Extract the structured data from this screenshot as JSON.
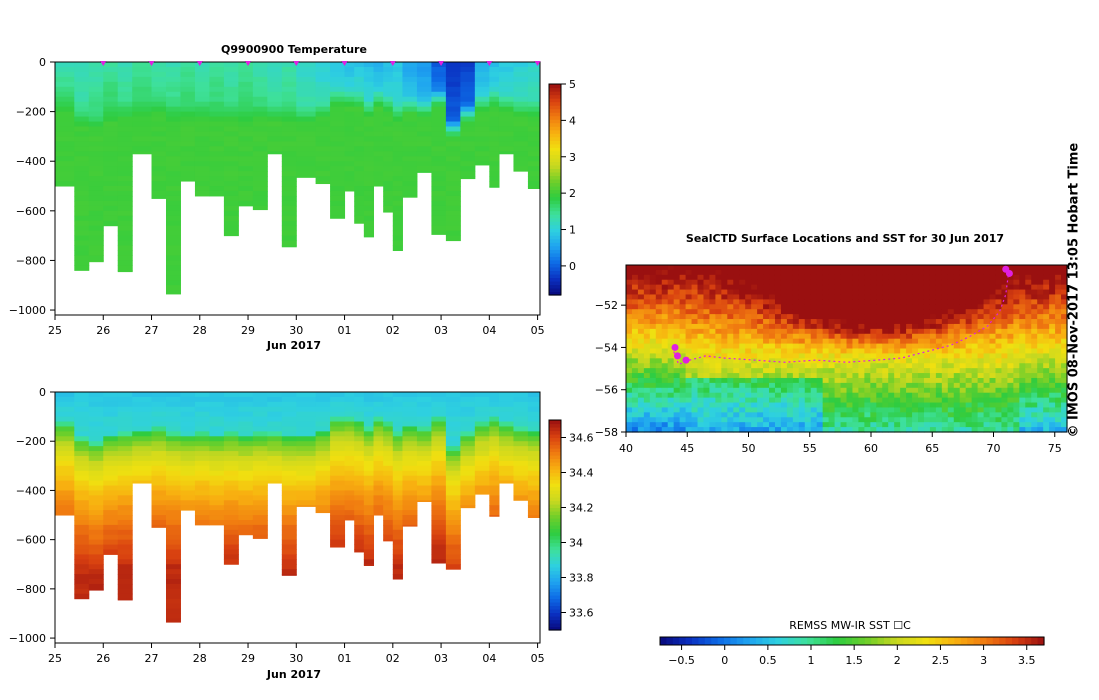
{
  "colors": {
    "palette": [
      "#08087a",
      "#0a2fc0",
      "#0d6be6",
      "#1fa3f0",
      "#2ed0e0",
      "#3ee09a",
      "#2ecc40",
      "#6ecf2a",
      "#c8d820",
      "#f0e010",
      "#f8b010",
      "#f07a10",
      "#d84010",
      "#9a1010"
    ],
    "magenta": "#e020e0",
    "frame": "#000000"
  },
  "chart_data": [
    {
      "type": "heatmap",
      "name": "temperature-section",
      "title": "Q9900900  Temperature",
      "xlabel": "Jun 2017",
      "x_tick_labels": [
        "25",
        "26",
        "27",
        "28",
        "29",
        "30",
        "01",
        "02",
        "03",
        "04",
        "05"
      ],
      "y_tick_labels": [
        "0",
        "−200",
        "−400",
        "−600",
        "−800",
        "−1000"
      ],
      "y_ticks": [
        0,
        -200,
        -400,
        -600,
        -800,
        -1000
      ],
      "ylim": [
        -1020,
        0
      ],
      "xlim": [
        25,
        35.05
      ],
      "colorbar": {
        "ticks": [
          0,
          1,
          2,
          3,
          4,
          5
        ],
        "tick_labels": [
          "0",
          "1",
          "2",
          "3",
          "4",
          "5"
        ],
        "range": [
          -0.8,
          5
        ]
      },
      "profile_days": [
        25,
        25.4,
        25.7,
        26,
        26.3,
        26.6,
        27,
        27.3,
        27.6,
        27.9,
        28.2,
        28.5,
        28.8,
        29.1,
        29.4,
        29.7,
        30,
        30.4,
        30.7,
        31,
        31.2,
        31.4,
        31.6,
        31.8,
        32,
        32.2,
        32.5,
        32.8,
        33.1,
        33.4,
        33.7,
        34,
        34.2,
        34.5,
        34.8
      ],
      "profile_max_depths": [
        -500,
        -840,
        -805,
        -660,
        -845,
        -370,
        -550,
        -935,
        -480,
        -540,
        -540,
        -700,
        -580,
        -595,
        -370,
        -745,
        -465,
        -490,
        -630,
        -520,
        -650,
        -705,
        -500,
        -605,
        -760,
        -545,
        -445,
        -695,
        -720,
        -470,
        -415,
        -505,
        -370,
        -440,
        -510
      ],
      "surface_values": [
        1.3,
        1.2,
        1.3,
        1.4,
        1.3,
        1.4,
        1.3,
        1.3,
        1.4,
        1.3,
        1.4,
        1.3,
        1.4,
        1.3,
        1.2,
        1.3,
        1.1,
        1.0,
        0.9,
        0.8,
        0.9,
        0.8,
        0.7,
        0.8,
        0.9,
        0.6,
        0.5,
        0.0,
        -0.3,
        -0.2,
        0.7,
        0.8,
        0.9,
        1.0,
        1.1
      ],
      "mixed_layer_depths": [
        -120,
        -180,
        -200,
        -170,
        -160,
        -150,
        -140,
        -160,
        -170,
        -160,
        -170,
        -160,
        -170,
        -160,
        -160,
        -170,
        -170,
        -150,
        -100,
        -100,
        -110,
        -140,
        -100,
        -120,
        -160,
        -130,
        -140,
        -100,
        -220,
        -160,
        -120,
        -100,
        -120,
        -140,
        -150
      ],
      "deep_value": 2.0,
      "position_markers_days": [
        26,
        27,
        28,
        29,
        30,
        31,
        32,
        33,
        34,
        35
      ]
    },
    {
      "type": "heatmap",
      "name": "salinity-section",
      "title": "",
      "xlabel": "Jun 2017",
      "x_tick_labels": [
        "25",
        "26",
        "27",
        "28",
        "29",
        "30",
        "01",
        "02",
        "03",
        "04",
        "05"
      ],
      "y_tick_labels": [
        "0",
        "−200",
        "−400",
        "−600",
        "−800",
        "−1000"
      ],
      "y_ticks": [
        0,
        -200,
        -400,
        -600,
        -800,
        -1000
      ],
      "ylim": [
        -1020,
        0
      ],
      "xlim": [
        25,
        35.05
      ],
      "colorbar": {
        "ticks": [
          33.6,
          33.8,
          34,
          34.2,
          34.4,
          34.6
        ],
        "tick_labels": [
          "33.6",
          "33.8",
          "34",
          "34.2",
          "34.4",
          "34.6"
        ],
        "range": [
          33.5,
          34.7
        ]
      },
      "surface_value": 33.85,
      "bottom_value": 34.65
    },
    {
      "type": "heatmap",
      "name": "sst-map",
      "title": "SealCTD Surface Locations and SST for 30 Jun 2017",
      "xlabel": "",
      "x_tick_labels": [
        "40",
        "45",
        "50",
        "55",
        "60",
        "65",
        "70",
        "75"
      ],
      "x_ticks": [
        40,
        45,
        50,
        55,
        60,
        65,
        70,
        75
      ],
      "y_tick_labels": [
        "−52",
        "−54",
        "−56",
        "−58"
      ],
      "y_ticks": [
        -52,
        -54,
        -56,
        -58
      ],
      "xlim": [
        40,
        76
      ],
      "ylim": [
        -58,
        -50.1
      ],
      "track_lon": [
        43.9,
        44.3,
        45.2,
        46.5,
        48,
        50.5,
        53,
        55.5,
        58,
        60.5,
        62.5,
        64.5,
        66.5,
        68,
        69.5,
        70.5,
        71,
        71.2
      ],
      "track_lat": [
        -54.2,
        -54.8,
        -54.6,
        -54.4,
        -54.5,
        -54.6,
        -54.7,
        -54.6,
        -54.7,
        -54.6,
        -54.5,
        -54.2,
        -53.9,
        -53.5,
        -53.0,
        -52.3,
        -51.5,
        -50.6
      ],
      "highlight_points": [
        [
          44.0,
          -54.0
        ],
        [
          44.2,
          -54.4
        ],
        [
          44.9,
          -54.6
        ],
        [
          71.0,
          -50.3
        ],
        [
          71.3,
          -50.5
        ]
      ],
      "colorbar": {
        "label": "REMSS MW-IR SST ☐C",
        "ticks": [
          -0.5,
          0,
          0.5,
          1,
          1.5,
          2,
          2.5,
          3,
          3.5
        ],
        "tick_labels": [
          "−0.5",
          "0",
          "0.5",
          "1",
          "1.5",
          "2",
          "2.5",
          "3",
          "3.5"
        ],
        "range": [
          -0.75,
          3.7
        ]
      }
    }
  ],
  "credit": "© IMOS 08-Nov-2017 13:05 Hobart Time"
}
